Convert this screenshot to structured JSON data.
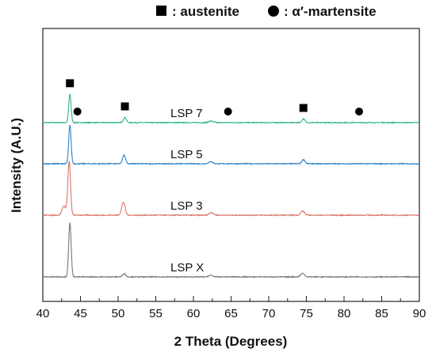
{
  "chart_data": {
    "type": "line",
    "xlabel": "2 Theta (Degrees)",
    "ylabel": "Intensity (A.U.)",
    "xlim": [
      40,
      90
    ],
    "xticks": [
      "40",
      "45",
      "50",
      "55",
      "60",
      "65",
      "70",
      "75",
      "80",
      "85",
      "90"
    ],
    "legend": {
      "placement": "top",
      "items": [
        {
          "marker": "square",
          "text": ": austenite"
        },
        {
          "marker": "circle",
          "text": ": α′-martensite"
        }
      ]
    },
    "series": [
      {
        "name": "LSP 7",
        "color": "#2bb58a",
        "baseline": 3.0,
        "peaks": [
          {
            "x": 43.6,
            "h": 0.55,
            "w": 0.22
          },
          {
            "x": 50.9,
            "h": 0.1,
            "w": 0.28
          },
          {
            "x": 62.3,
            "h": 0.03,
            "w": 0.4
          },
          {
            "x": 74.6,
            "h": 0.07,
            "w": 0.3
          }
        ]
      },
      {
        "name": "LSP 5",
        "color": "#2d84c9",
        "baseline": 2.2,
        "peaks": [
          {
            "x": 43.6,
            "h": 0.75,
            "w": 0.22
          },
          {
            "x": 50.8,
            "h": 0.17,
            "w": 0.28
          },
          {
            "x": 62.3,
            "h": 0.04,
            "w": 0.4
          },
          {
            "x": 74.6,
            "h": 0.08,
            "w": 0.3
          }
        ]
      },
      {
        "name": "LSP 3",
        "color": "#d9766b",
        "baseline": 1.2,
        "peaks": [
          {
            "x": 43.5,
            "h": 1.05,
            "w": 0.25
          },
          {
            "x": 42.8,
            "h": 0.18,
            "w": 0.35
          },
          {
            "x": 50.7,
            "h": 0.25,
            "w": 0.32
          },
          {
            "x": 62.4,
            "h": 0.05,
            "w": 0.4
          },
          {
            "x": 74.5,
            "h": 0.08,
            "w": 0.35
          }
        ]
      },
      {
        "name": "LSP X",
        "color": "#777777",
        "baseline": 0.0,
        "peaks": [
          {
            "x": 43.6,
            "h": 1.05,
            "w": 0.23
          },
          {
            "x": 50.8,
            "h": 0.06,
            "w": 0.3
          },
          {
            "x": 62.3,
            "h": 0.03,
            "w": 0.4
          },
          {
            "x": 74.5,
            "h": 0.07,
            "w": 0.35
          }
        ]
      }
    ],
    "annotations": [
      {
        "marker": "square",
        "x": 43.6
      },
      {
        "marker": "circle",
        "x": 44.6
      },
      {
        "marker": "square",
        "x": 50.9
      },
      {
        "marker": "circle",
        "x": 64.6
      },
      {
        "marker": "square",
        "x": 74.6
      },
      {
        "marker": "circle",
        "x": 82.0
      }
    ]
  }
}
